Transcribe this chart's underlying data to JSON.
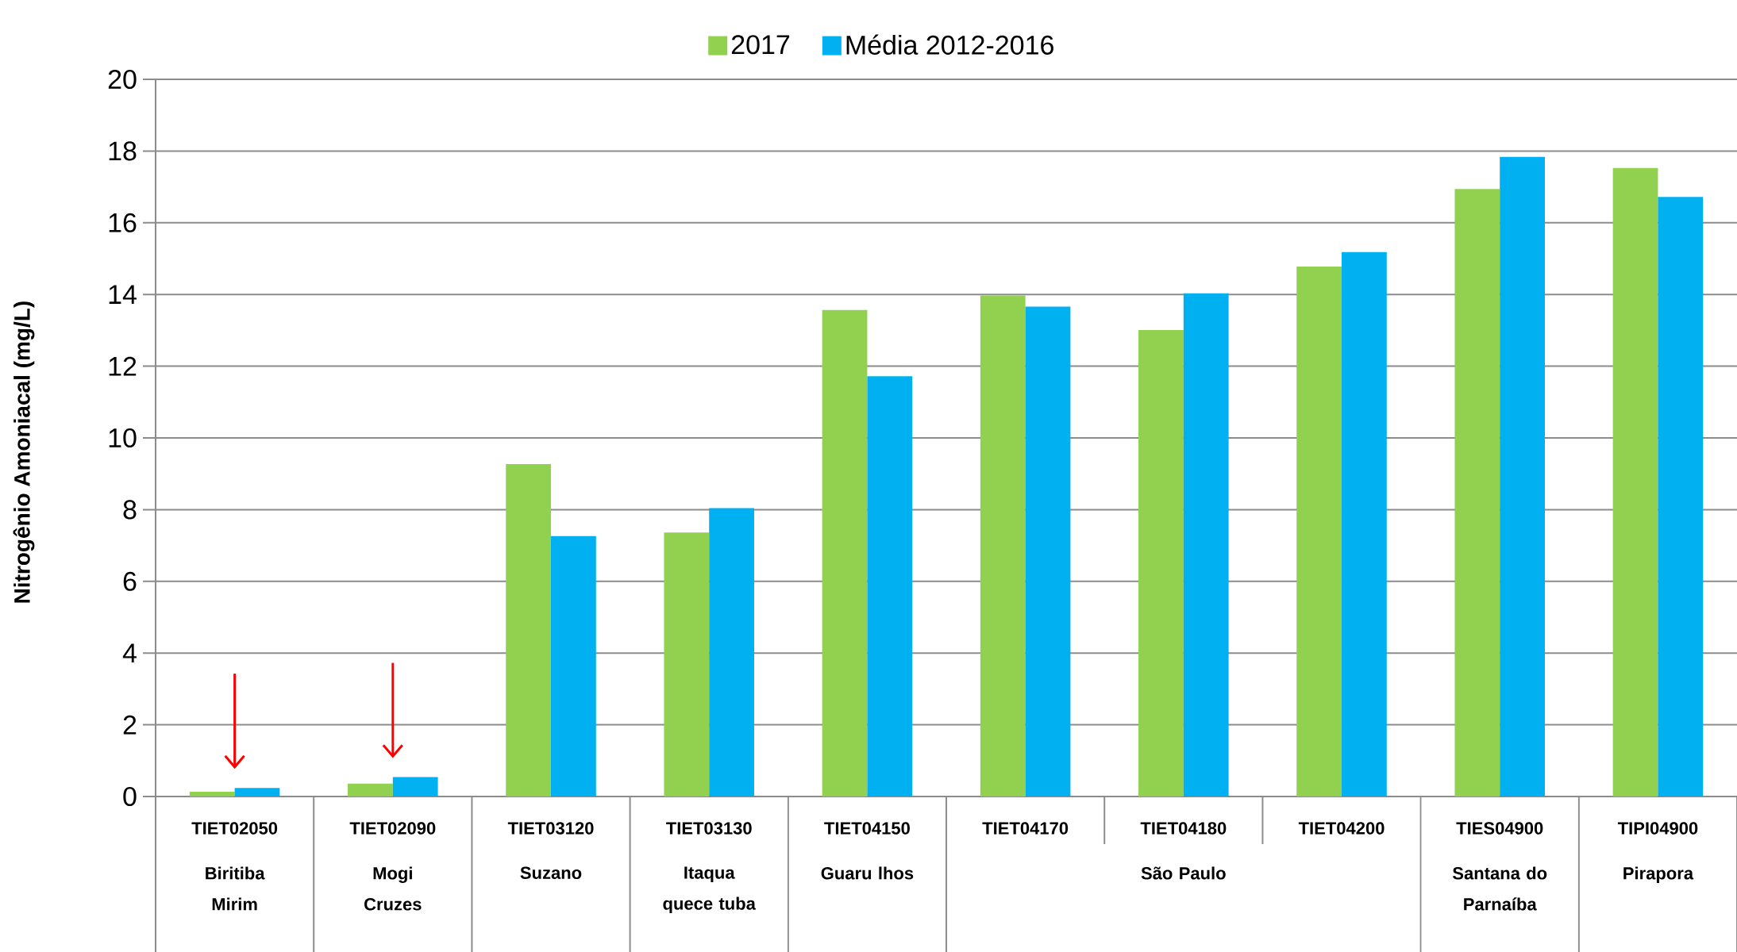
{
  "chart_data": {
    "type": "bar",
    "ylabel": "Nitrogênio Amoniacal (mg/L)",
    "categories": [
      "TIET02050",
      "TIET02090",
      "TIET03120",
      "TIET03130",
      "TIET04150",
      "TIET04170",
      "TIET04180",
      "TIET04200",
      "TIES04900",
      "TIPI04900"
    ],
    "series": [
      {
        "name": "2017",
        "color": "#92d050",
        "values": [
          0.13,
          0.36,
          9.27,
          7.36,
          13.57,
          13.97,
          13.01,
          14.78,
          16.94,
          17.53
        ]
      },
      {
        "name": "Média 2012-2016",
        "color": "#00b0f0",
        "values": [
          0.24,
          0.54,
          7.26,
          8.04,
          11.72,
          13.66,
          14.03,
          15.18,
          17.84,
          16.72
        ]
      }
    ],
    "ylim": [
      0,
      20
    ],
    "yticks": [
      0,
      2,
      4,
      6,
      8,
      10,
      12,
      14,
      16,
      18,
      20
    ],
    "grid": "y",
    "legend": "top",
    "annotations": [
      "Biritiba Mirim",
      "Mogi Cruzes",
      "Suzano",
      "Itaqua quece tuba",
      "Guaru lhos",
      "São Paulo",
      "Santana do Parnaíba",
      "Pirapora"
    ]
  }
}
